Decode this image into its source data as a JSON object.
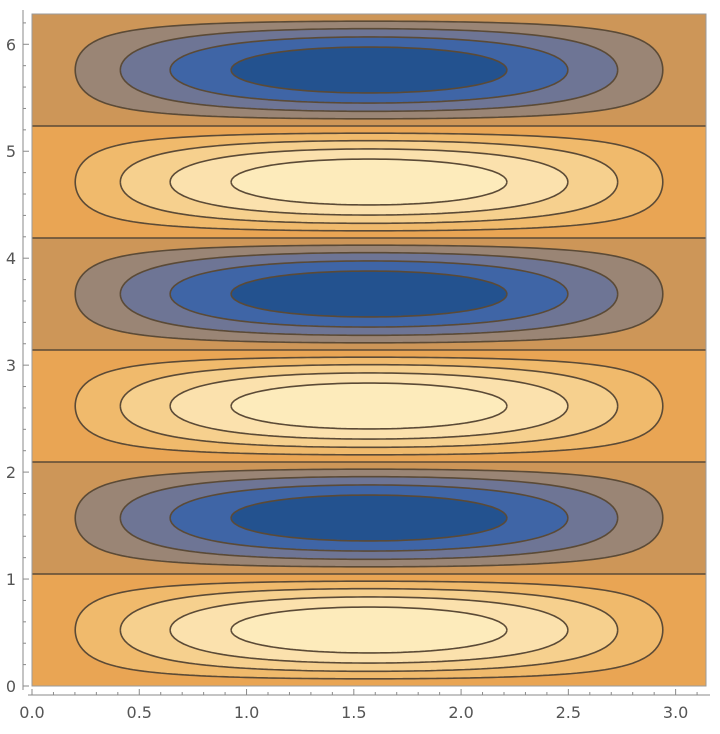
{
  "chart_data": {
    "type": "contour",
    "function": "sin(x) * sin(3 * y)",
    "title": "",
    "xlabel": "",
    "ylabel": "",
    "xlim": [
      0,
      3.14159
    ],
    "ylim": [
      0,
      6.28319
    ],
    "x_ticks": [
      "0.0",
      "0.5",
      "1.0",
      "1.5",
      "2.0",
      "2.5",
      "3.0"
    ],
    "x_tick_values": [
      0,
      0.5,
      1.0,
      1.5,
      2.0,
      2.5,
      3.0
    ],
    "y_ticks": [
      "0",
      "1",
      "2",
      "3",
      "4",
      "5",
      "6"
    ],
    "y_tick_values": [
      0,
      1,
      2,
      3,
      4,
      5,
      6
    ],
    "contour_levels": [
      -0.8,
      -0.6,
      -0.4,
      -0.2,
      0.0,
      0.2,
      0.4,
      0.6,
      0.8
    ],
    "band_colors": [
      "#23528f",
      "#3f65a6",
      "#6e7595",
      "#9a8575",
      "#cd9658",
      "#e9a554",
      "#f0ba6c",
      "#f6d08e",
      "#fbe1ad",
      "#fdebbb"
    ],
    "grid": false,
    "legend": "none"
  }
}
